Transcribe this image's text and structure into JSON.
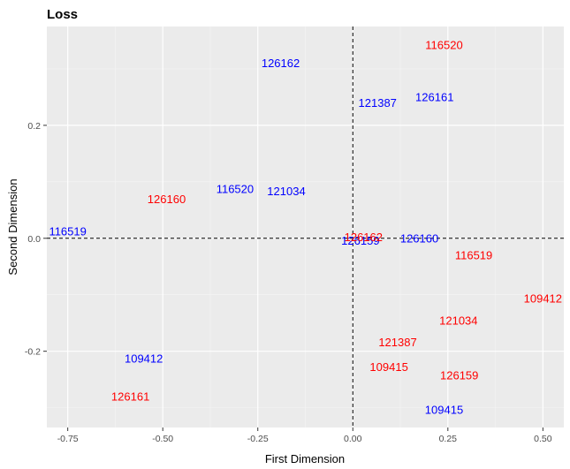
{
  "chart_data": {
    "type": "scatter",
    "title": "Loss",
    "xlabel": "First Dimension",
    "ylabel": "Second Dimension",
    "xlim": [
      -0.805,
      0.555
    ],
    "ylim": [
      -0.335,
      0.375
    ],
    "x_ticks": [
      -0.75,
      -0.5,
      -0.25,
      0.0,
      0.25,
      0.5
    ],
    "x_tick_labels": [
      "-0.75",
      "-0.50",
      "-0.25",
      "0.00",
      "0.25",
      "0.50"
    ],
    "y_ticks": [
      -0.2,
      0.0,
      0.2
    ],
    "y_tick_labels": [
      "-0.2",
      "0.0",
      "0.2"
    ],
    "reference_lines": {
      "x": 0.0,
      "y": 0.0,
      "style": "dashed"
    },
    "grid": true,
    "legend": "none",
    "background_color": "#ebebeb",
    "series": [
      {
        "color": "#0000ff",
        "points": [
          {
            "label": "126162",
            "x": -0.19,
            "y": 0.31
          },
          {
            "label": "121387",
            "x": 0.065,
            "y": 0.24
          },
          {
            "label": "126161",
            "x": 0.215,
            "y": 0.25
          },
          {
            "label": "116520",
            "x": -0.31,
            "y": 0.087
          },
          {
            "label": "121034",
            "x": -0.175,
            "y": 0.083
          },
          {
            "label": "116519",
            "x": -0.75,
            "y": 0.012
          },
          {
            "label": "126159",
            "x": 0.02,
            "y": -0.004
          },
          {
            "label": "126160",
            "x": 0.175,
            "y": 0.0
          },
          {
            "label": "109412",
            "x": -0.55,
            "y": -0.213
          },
          {
            "label": "109415",
            "x": 0.24,
            "y": -0.304
          }
        ]
      },
      {
        "color": "#ff0000",
        "points": [
          {
            "label": "116520",
            "x": 0.24,
            "y": 0.342
          },
          {
            "label": "126160",
            "x": -0.49,
            "y": 0.069
          },
          {
            "label": "126162",
            "x": 0.028,
            "y": 0.002
          },
          {
            "label": "116519",
            "x": 0.318,
            "y": -0.03
          },
          {
            "label": "109412",
            "x": 0.5,
            "y": -0.107
          },
          {
            "label": "121034",
            "x": 0.278,
            "y": -0.146
          },
          {
            "label": "121387",
            "x": 0.118,
            "y": -0.184
          },
          {
            "label": "109415",
            "x": 0.095,
            "y": -0.228
          },
          {
            "label": "126159",
            "x": 0.28,
            "y": -0.243
          },
          {
            "label": "126161",
            "x": -0.585,
            "y": -0.28
          }
        ]
      }
    ]
  }
}
